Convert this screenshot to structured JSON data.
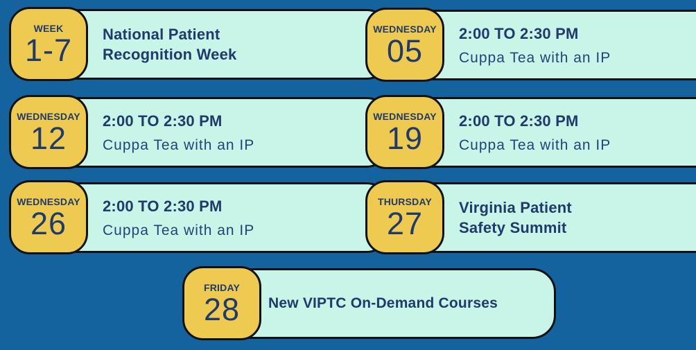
{
  "page": {
    "description": "Monthly events calendar flyer",
    "colors": {
      "background": "#15639e",
      "card_body": "#c9f4e8",
      "badge": "#eeca50",
      "text_navy": "#1f3a6b",
      "outline": "#121212"
    }
  },
  "cards": [
    {
      "day_label": "WEEK",
      "day_value": "1-7",
      "title": "National Patient\nRecognition Week",
      "subtitle": ""
    },
    {
      "day_label": "WEDNESDAY",
      "day_value": "05",
      "title": "2:00 TO 2:30 PM",
      "subtitle": "Cuppa Tea with an IP"
    },
    {
      "day_label": "WEDNESDAY",
      "day_value": "12",
      "title": "2:00 TO 2:30 PM",
      "subtitle": "Cuppa Tea with an IP"
    },
    {
      "day_label": "WEDNESDAY",
      "day_value": "19",
      "title": "2:00 TO 2:30 PM",
      "subtitle": "Cuppa Tea with an IP"
    },
    {
      "day_label": "WEDNESDAY",
      "day_value": "26",
      "title": "2:00 TO 2:30 PM",
      "subtitle": "Cuppa Tea with an IP"
    },
    {
      "day_label": "THURSDAY",
      "day_value": "27",
      "title": "Virginia Patient\nSafety Summit",
      "subtitle": ""
    },
    {
      "day_label": "FRIDAY",
      "day_value": "28",
      "title": "New VIPTC On-Demand Courses",
      "subtitle": ""
    }
  ]
}
